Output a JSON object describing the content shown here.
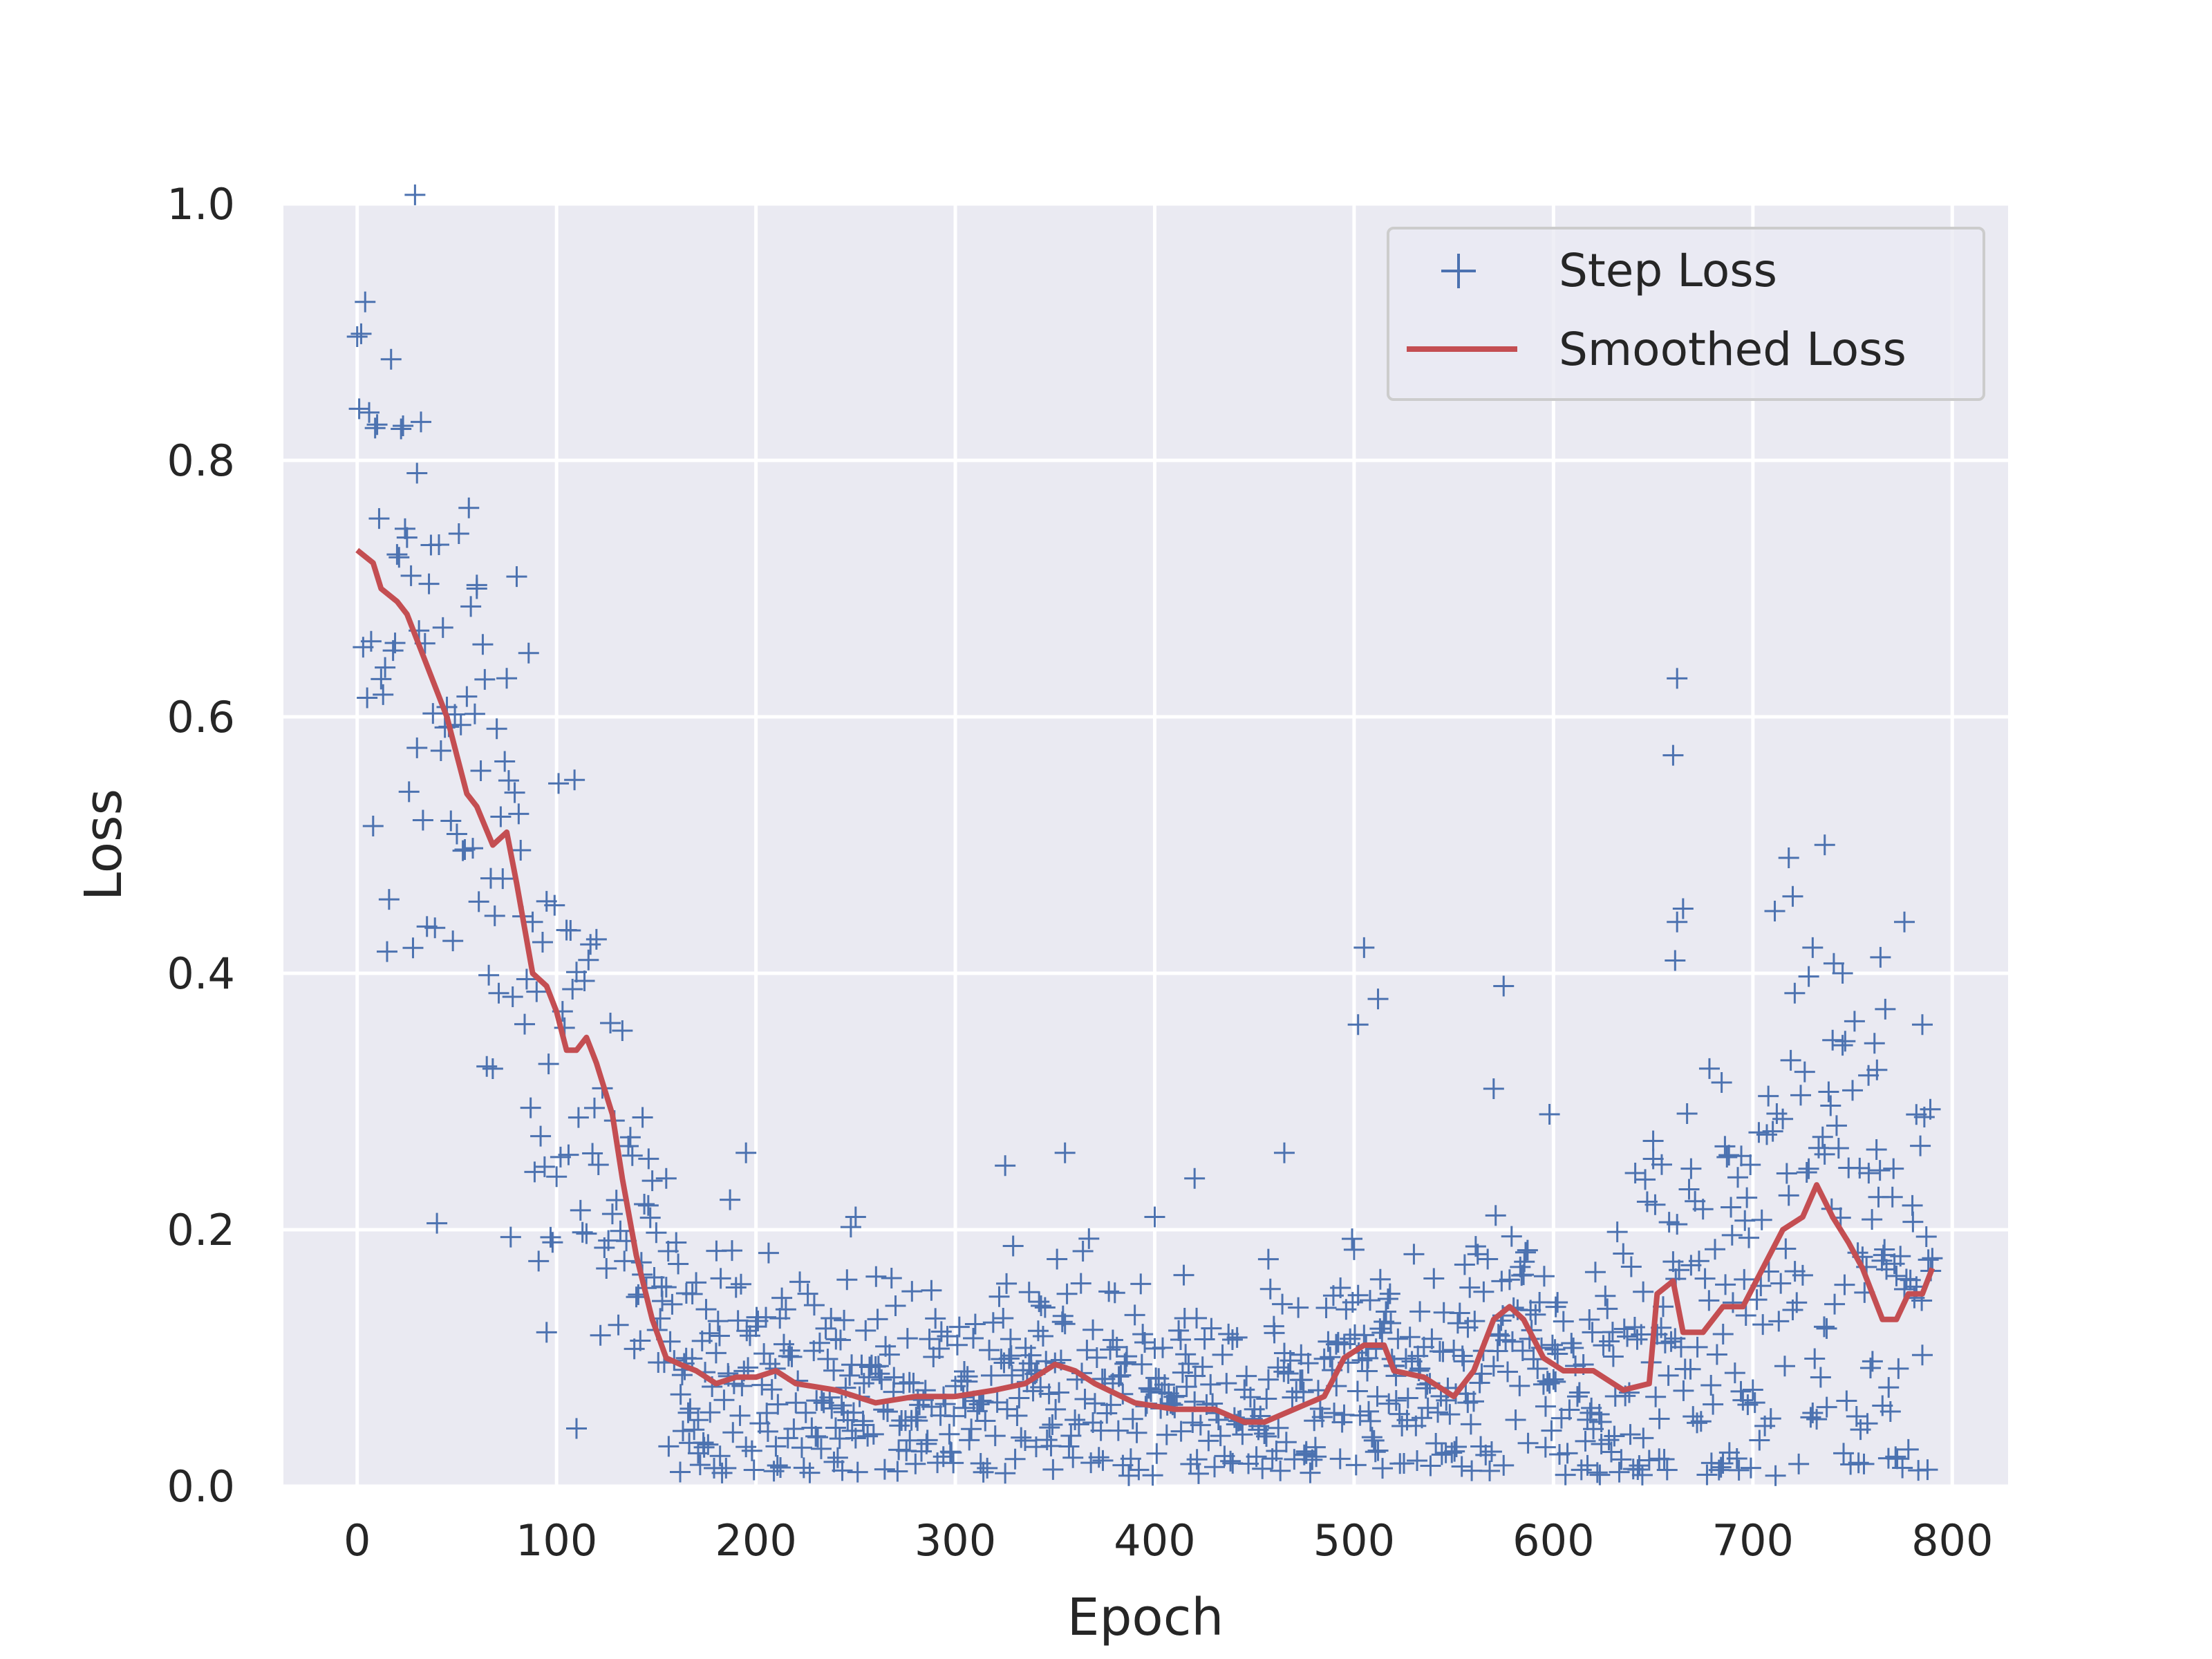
{
  "chart_data": {
    "type": "scatter",
    "xlabel": "Epoch",
    "ylabel": "Loss",
    "xlim": [
      -37,
      828
    ],
    "ylim": [
      0.0,
      1.0
    ],
    "x_ticks": [
      0,
      100,
      200,
      300,
      400,
      500,
      600,
      700,
      800
    ],
    "y_ticks": [
      0.0,
      0.2,
      0.4,
      0.6,
      0.8,
      1.0
    ],
    "x_tick_labels": [
      "0",
      "100",
      "200",
      "300",
      "400",
      "500",
      "600",
      "700",
      "800"
    ],
    "y_tick_labels": [
      "0.0",
      "0.2",
      "0.4",
      "0.6",
      "0.8",
      "1.0"
    ],
    "grid": true,
    "legend_position": "top-right",
    "colors": {
      "background": "#eaeaf2",
      "step": "#4c72b0",
      "smoothed": "#c44e52"
    },
    "series": [
      {
        "name": "Step Loss",
        "marker": "+",
        "trend": [
          [
            0,
            0.72
          ],
          [
            20,
            0.68
          ],
          [
            40,
            0.6
          ],
          [
            60,
            0.52
          ],
          [
            80,
            0.44
          ],
          [
            100,
            0.37
          ],
          [
            120,
            0.3
          ],
          [
            140,
            0.17
          ],
          [
            160,
            0.1
          ],
          [
            180,
            0.085
          ],
          [
            200,
            0.085
          ],
          [
            260,
            0.07
          ],
          [
            300,
            0.07
          ],
          [
            350,
            0.09
          ],
          [
            400,
            0.065
          ],
          [
            450,
            0.05
          ],
          [
            500,
            0.1
          ],
          [
            550,
            0.07
          ],
          [
            580,
            0.13
          ],
          [
            600,
            0.09
          ],
          [
            640,
            0.08
          ],
          [
            660,
            0.15
          ],
          [
            680,
            0.13
          ],
          [
            700,
            0.16
          ],
          [
            720,
            0.2
          ],
          [
            735,
            0.23
          ],
          [
            750,
            0.19
          ],
          [
            770,
            0.13
          ],
          [
            790,
            0.17
          ]
        ],
        "step": 1,
        "x_range": [
          0,
          790
        ],
        "outliers": [
          [
            30,
            0.79
          ],
          [
            60,
            0.7
          ],
          [
            95,
            0.12
          ],
          [
            110,
            0.045
          ],
          [
            155,
            0.24
          ],
          [
            195,
            0.26
          ],
          [
            250,
            0.21
          ],
          [
            325,
            0.25
          ],
          [
            355,
            0.26
          ],
          [
            400,
            0.21
          ],
          [
            420,
            0.24
          ],
          [
            465,
            0.26
          ],
          [
            505,
            0.42
          ],
          [
            512,
            0.38
          ],
          [
            502,
            0.36
          ],
          [
            575,
            0.39
          ],
          [
            570,
            0.31
          ],
          [
            598,
            0.29
          ],
          [
            662,
            0.63
          ],
          [
            660,
            0.57
          ],
          [
            662,
            0.44
          ],
          [
            661,
            0.41
          ],
          [
            718,
            0.49
          ],
          [
            720,
            0.46
          ],
          [
            730,
            0.42
          ],
          [
            745,
            0.4
          ],
          [
            776,
            0.44
          ],
          [
            785,
            0.36
          ]
        ]
      },
      {
        "name": "Smoothed Loss",
        "points": [
          [
            0,
            0.73
          ],
          [
            8,
            0.72
          ],
          [
            12,
            0.7
          ],
          [
            20,
            0.69
          ],
          [
            25,
            0.68
          ],
          [
            35,
            0.64
          ],
          [
            45,
            0.6
          ],
          [
            50,
            0.57
          ],
          [
            55,
            0.54
          ],
          [
            60,
            0.53
          ],
          [
            68,
            0.5
          ],
          [
            75,
            0.51
          ],
          [
            80,
            0.47
          ],
          [
            88,
            0.4
          ],
          [
            95,
            0.39
          ],
          [
            100,
            0.37
          ],
          [
            105,
            0.34
          ],
          [
            110,
            0.34
          ],
          [
            115,
            0.35
          ],
          [
            120,
            0.33
          ],
          [
            128,
            0.29
          ],
          [
            133,
            0.24
          ],
          [
            140,
            0.18
          ],
          [
            148,
            0.13
          ],
          [
            155,
            0.1
          ],
          [
            162,
            0.095
          ],
          [
            170,
            0.09
          ],
          [
            180,
            0.08
          ],
          [
            190,
            0.085
          ],
          [
            200,
            0.085
          ],
          [
            210,
            0.09
          ],
          [
            220,
            0.08
          ],
          [
            240,
            0.075
          ],
          [
            260,
            0.065
          ],
          [
            280,
            0.07
          ],
          [
            300,
            0.07
          ],
          [
            320,
            0.075
          ],
          [
            335,
            0.08
          ],
          [
            350,
            0.095
          ],
          [
            360,
            0.09
          ],
          [
            370,
            0.08
          ],
          [
            390,
            0.065
          ],
          [
            410,
            0.06
          ],
          [
            430,
            0.06
          ],
          [
            445,
            0.05
          ],
          [
            455,
            0.05
          ],
          [
            470,
            0.06
          ],
          [
            485,
            0.07
          ],
          [
            495,
            0.1
          ],
          [
            505,
            0.11
          ],
          [
            515,
            0.11
          ],
          [
            520,
            0.09
          ],
          [
            535,
            0.085
          ],
          [
            550,
            0.07
          ],
          [
            560,
            0.09
          ],
          [
            570,
            0.13
          ],
          [
            578,
            0.14
          ],
          [
            585,
            0.13
          ],
          [
            595,
            0.1
          ],
          [
            605,
            0.09
          ],
          [
            620,
            0.09
          ],
          [
            635,
            0.075
          ],
          [
            648,
            0.08
          ],
          [
            652,
            0.15
          ],
          [
            660,
            0.16
          ],
          [
            665,
            0.12
          ],
          [
            675,
            0.12
          ],
          [
            685,
            0.14
          ],
          [
            695,
            0.14
          ],
          [
            705,
            0.17
          ],
          [
            715,
            0.2
          ],
          [
            725,
            0.21
          ],
          [
            732,
            0.235
          ],
          [
            740,
            0.21
          ],
          [
            748,
            0.19
          ],
          [
            755,
            0.17
          ],
          [
            765,
            0.13
          ],
          [
            772,
            0.13
          ],
          [
            778,
            0.15
          ],
          [
            785,
            0.15
          ],
          [
            790,
            0.17
          ]
        ]
      }
    ]
  }
}
